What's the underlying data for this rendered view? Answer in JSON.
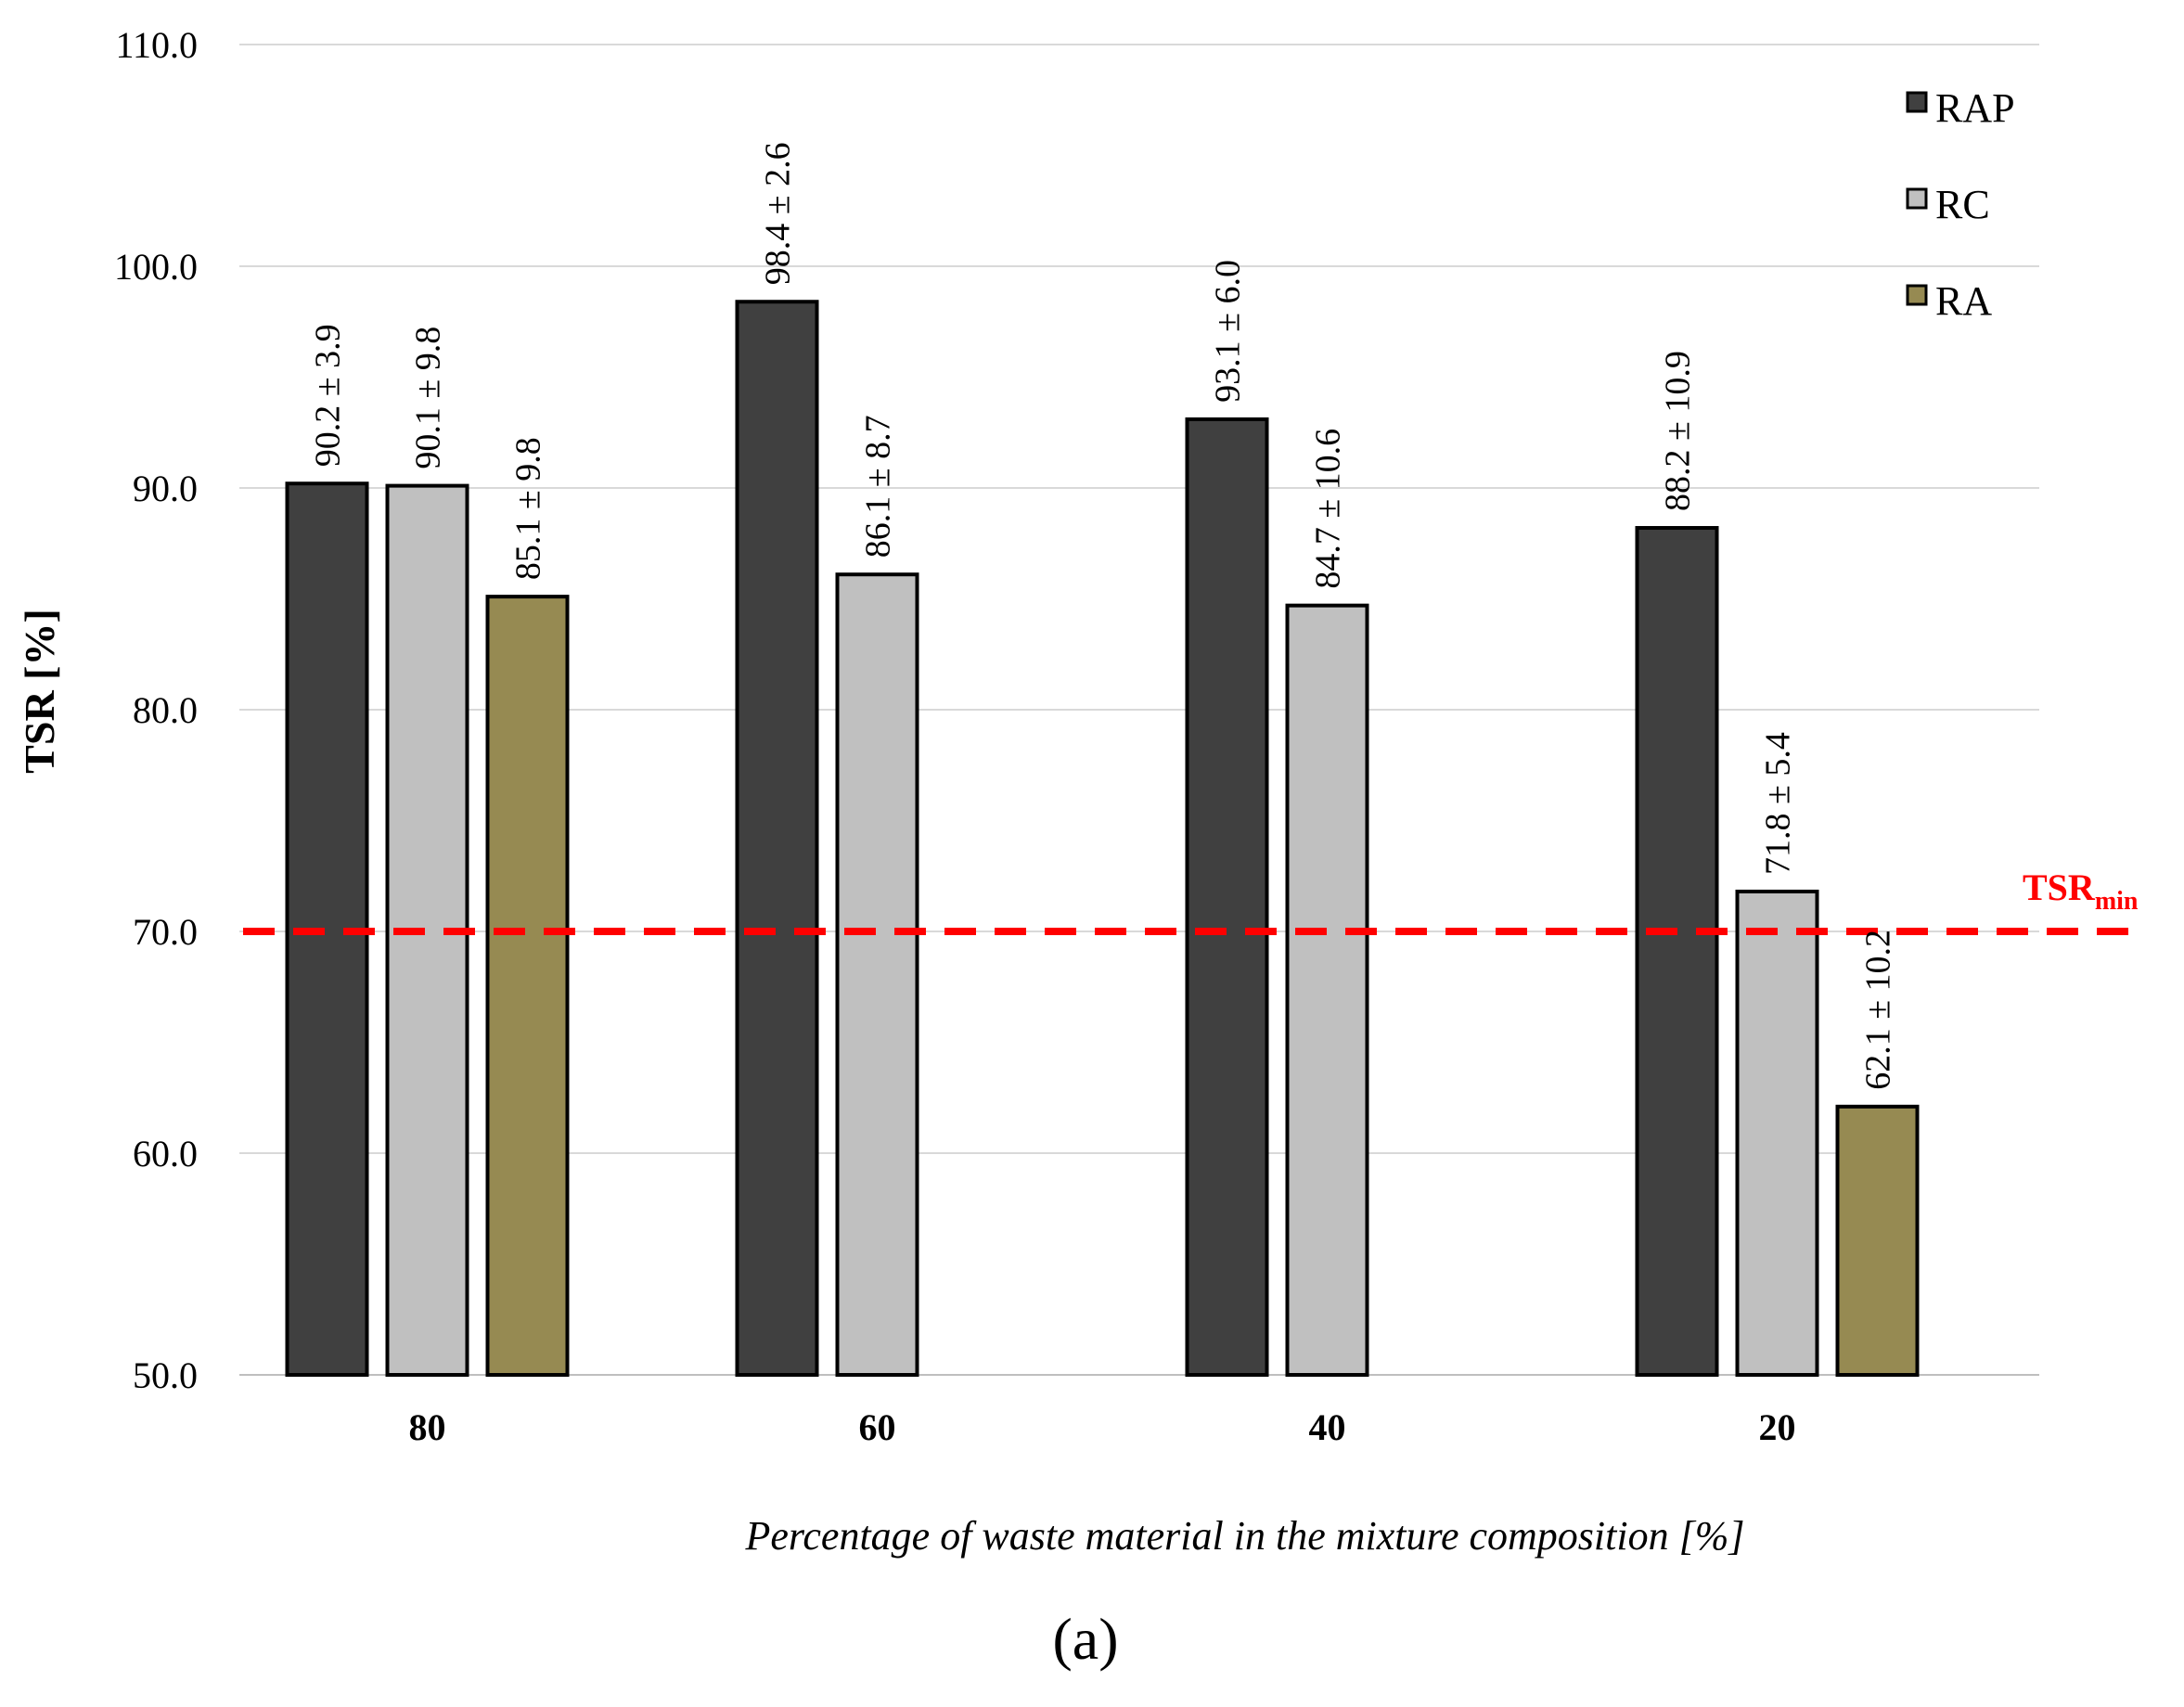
{
  "chart_data": {
    "type": "bar",
    "categories": [
      "80",
      "60",
      "40",
      "20"
    ],
    "series": [
      {
        "name": "RAP",
        "color": "#404040",
        "values": [
          90.2,
          98.4,
          93.1,
          88.2
        ],
        "sd": [
          3.9,
          2.6,
          6.0,
          10.9
        ],
        "labels": [
          "90.2 ± 3.9",
          "98.4 ± 2.6",
          "93.1 ± 6.0",
          "88.2 ± 10.9"
        ]
      },
      {
        "name": "RC",
        "color": "#c0c0c0",
        "values": [
          90.1,
          86.1,
          84.7,
          71.8
        ],
        "sd": [
          9.8,
          8.7,
          10.6,
          5.4
        ],
        "labels": [
          "90.1 ± 9.8",
          "86.1 ± 8.7",
          "84.7 ± 10.6",
          "71.8 ± 5.4"
        ]
      },
      {
        "name": "RA",
        "color": "#968a52",
        "values": [
          85.1,
          null,
          null,
          62.1
        ],
        "sd": [
          9.8,
          null,
          null,
          10.2
        ],
        "labels": [
          "85.1 ± 9.8",
          null,
          null,
          "62.1 ± 10.2"
        ]
      }
    ],
    "ylabel": "TSR [%]",
    "xlabel": "Percentage of waste material in the mixture composition [%]",
    "ylim": [
      50,
      110
    ],
    "yticks": [
      "50.0",
      "60.0",
      "70.0",
      "80.0",
      "90.0",
      "100.0",
      "110.0"
    ],
    "grid": true,
    "legend_position": "top-right",
    "reference_line": {
      "value": 70.0,
      "label_main": "TSR",
      "label_sub": "min",
      "color": "#ff0000",
      "style": "dashed"
    },
    "panel_label": "(a)"
  }
}
